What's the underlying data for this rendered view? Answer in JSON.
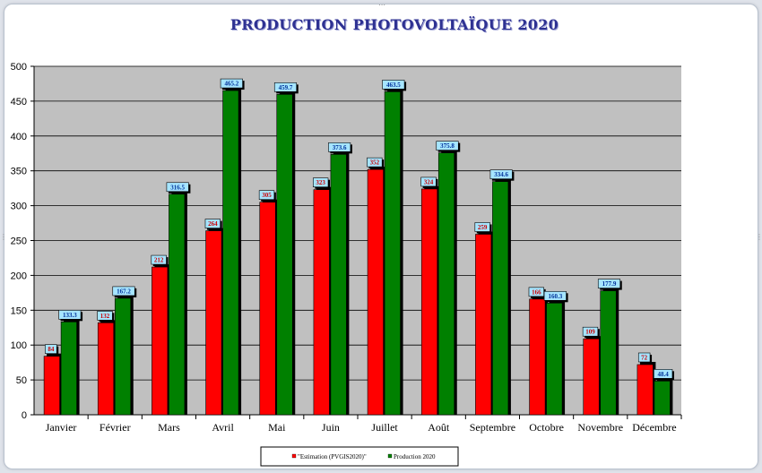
{
  "colors": {
    "estimation": "#ff0000",
    "production": "#008000",
    "plot_bg": "#c0c0c0",
    "title": "#2e3192",
    "label_bg": "#a6e5ff"
  },
  "chart_data": {
    "type": "bar",
    "title": "PRODUCTION PHOTOVOLTAÏQUE 2020",
    "xlabel": "",
    "ylabel": "",
    "ylim": [
      0,
      500
    ],
    "yticks": [
      0,
      50,
      100,
      150,
      200,
      250,
      300,
      350,
      400,
      450,
      500
    ],
    "grid": true,
    "legend_position": "bottom",
    "categories": [
      "Janvier",
      "Février",
      "Mars",
      "Avril",
      "Mai",
      "Juin",
      "Juillet",
      "Août",
      "Septembre",
      "Octobre",
      "Novembre",
      "Décembre"
    ],
    "series": [
      {
        "name": "\"Estimation (PVGIS2020)\"",
        "color": "#ff0000",
        "values": [
          84,
          132,
          212,
          264,
          305,
          323,
          352,
          324,
          259,
          166,
          109,
          72
        ]
      },
      {
        "name": "Production 2020",
        "color": "#008000",
        "values": [
          133.3,
          167.2,
          316.5,
          465.2,
          459.7,
          373.6,
          463.5,
          375.8,
          334.6,
          160.3,
          177.9,
          48.4
        ]
      }
    ]
  }
}
